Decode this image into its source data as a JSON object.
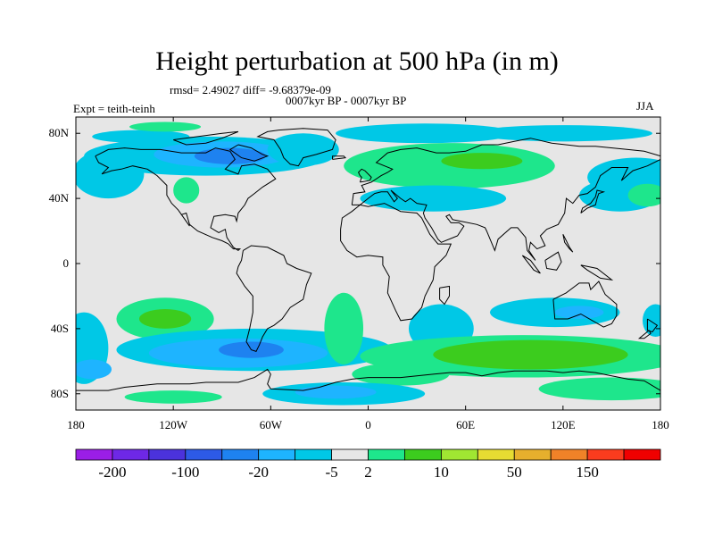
{
  "title": "Height perturbation at 500 hPa (in m)",
  "rmsd_line": "rmsd= 2.49027 diff= -9.68379e-09",
  "period_line": "0007kyr BP - 0007kyr BP",
  "expt_label": "Expt = teith-teinh",
  "season": "JJA",
  "colors": {
    "background": "#e6e6e6",
    "land_outline": "#000000",
    "cyan": "#00c8e6",
    "light_blue": "#1eb4ff",
    "blue": "#1e82f0",
    "aqua_green": "#1ee68c",
    "green": "#3ccc1e"
  },
  "chart_data": {
    "type": "heatmap",
    "title": "Height perturbation at 500 hPa (in m)",
    "xlabel": "",
    "ylabel": "",
    "xlim": [
      -180,
      180
    ],
    "ylim": [
      -90,
      90
    ],
    "x_ticks": [
      {
        "value": -180,
        "label": "180"
      },
      {
        "value": -120,
        "label": "120W"
      },
      {
        "value": -60,
        "label": "60W"
      },
      {
        "value": 0,
        "label": "0"
      },
      {
        "value": 60,
        "label": "60E"
      },
      {
        "value": 120,
        "label": "120E"
      },
      {
        "value": 180,
        "label": "180"
      }
    ],
    "y_ticks": [
      {
        "value": 80,
        "label": "80N"
      },
      {
        "value": 40,
        "label": "40N"
      },
      {
        "value": 0,
        "label": "0"
      },
      {
        "value": -40,
        "label": "40S"
      },
      {
        "value": -80,
        "label": "80S"
      }
    ],
    "colorbar": {
      "colors": [
        "#9b1ee6",
        "#6e28e6",
        "#4b32dc",
        "#2d5ae6",
        "#1e82f0",
        "#1eb4ff",
        "#00c8e6",
        "#e6e6e6",
        "#1ee68c",
        "#3ccc1e",
        "#a0e632",
        "#e6dc32",
        "#e6af2d",
        "#f08228",
        "#fa3c1e",
        "#f00000"
      ],
      "labels": [
        {
          "value": "-200",
          "after_box": 1
        },
        {
          "value": "-100",
          "after_box": 3
        },
        {
          "value": "-20",
          "after_box": 5
        },
        {
          "value": "-5",
          "after_box": 7
        },
        {
          "value": "2",
          "after_box": 8
        },
        {
          "value": "10",
          "after_box": 10
        },
        {
          "value": "50",
          "after_box": 12
        },
        {
          "value": "150",
          "after_box": 14
        }
      ]
    },
    "anomaly_regions": [
      {
        "color": "#00c8e6",
        "lon": -140,
        "lat": 78,
        "rlon": 30,
        "rlat": 4
      },
      {
        "color": "#1ee68c",
        "lon": -125,
        "lat": 84,
        "rlon": 22,
        "rlat": 3
      },
      {
        "color": "#00c8e6",
        "lon": -100,
        "lat": 66,
        "rlon": 75,
        "rlat": 12
      },
      {
        "color": "#1eb4ff",
        "lon": -90,
        "lat": 67,
        "rlon": 42,
        "rlat": 8
      },
      {
        "color": "#1e82f0",
        "lon": -85,
        "lat": 66,
        "rlon": 22,
        "rlat": 5
      },
      {
        "color": "#00c8e6",
        "lon": -40,
        "lat": 70,
        "rlon": 22,
        "rlat": 10
      },
      {
        "color": "#00c8e6",
        "lon": -160,
        "lat": 55,
        "rlon": 22,
        "rlat": 15
      },
      {
        "color": "#1ee68c",
        "lon": -112,
        "lat": 45,
        "rlon": 8,
        "rlat": 8
      },
      {
        "color": "#1ee68c",
        "lon": 50,
        "lat": 60,
        "rlon": 65,
        "rlat": 14
      },
      {
        "color": "#3ccc1e",
        "lon": 70,
        "lat": 63,
        "rlon": 25,
        "rlat": 5
      },
      {
        "color": "#00c8e6",
        "lon": 35,
        "lat": 80,
        "rlon": 55,
        "rlat": 6
      },
      {
        "color": "#00c8e6",
        "lon": 120,
        "lat": 80,
        "rlon": 55,
        "rlat": 5
      },
      {
        "color": "#00c8e6",
        "lon": 40,
        "lat": 40,
        "rlon": 45,
        "rlat": 8
      },
      {
        "color": "#00c8e6",
        "lon": 165,
        "lat": 53,
        "rlon": 30,
        "rlat": 12
      },
      {
        "color": "#00c8e6",
        "lon": 155,
        "lat": 42,
        "rlon": 25,
        "rlat": 10
      },
      {
        "color": "#1ee68c",
        "lon": 172,
        "lat": 42,
        "rlon": 12,
        "rlat": 7
      },
      {
        "color": "#00c8e6",
        "lon": -175,
        "lat": -52,
        "rlon": 15,
        "rlat": 22
      },
      {
        "color": "#1ee68c",
        "lon": -125,
        "lat": -34,
        "rlon": 30,
        "rlat": 13
      },
      {
        "color": "#3ccc1e",
        "lon": -125,
        "lat": -34,
        "rlon": 16,
        "rlat": 6
      },
      {
        "color": "#00c8e6",
        "lon": -70,
        "lat": -53,
        "rlon": 85,
        "rlat": 13
      },
      {
        "color": "#1eb4ff",
        "lon": -80,
        "lat": -55,
        "rlon": 55,
        "rlat": 9
      },
      {
        "color": "#1e82f0",
        "lon": -72,
        "lat": -53,
        "rlon": 20,
        "rlat": 5
      },
      {
        "color": "#1eb4ff",
        "lon": -170,
        "lat": -65,
        "rlon": 12,
        "rlat": 6
      },
      {
        "color": "#1ee68c",
        "lon": -15,
        "lat": -40,
        "rlon": 12,
        "rlat": 22
      },
      {
        "color": "#00c8e6",
        "lon": 45,
        "lat": -40,
        "rlon": 20,
        "rlat": 15
      },
      {
        "color": "#00c8e6",
        "lon": 115,
        "lat": -30,
        "rlon": 40,
        "rlat": 9
      },
      {
        "color": "#1eb4ff",
        "lon": 130,
        "lat": -30,
        "rlon": 15,
        "rlat": 4
      },
      {
        "color": "#00c8e6",
        "lon": 177,
        "lat": -35,
        "rlon": 8,
        "rlat": 10
      },
      {
        "color": "#1ee68c",
        "lon": 95,
        "lat": -57,
        "rlon": 100,
        "rlat": 13
      },
      {
        "color": "#3ccc1e",
        "lon": 100,
        "lat": -56,
        "rlon": 60,
        "rlat": 9
      },
      {
        "color": "#1ee68c",
        "lon": 20,
        "lat": -68,
        "rlon": 30,
        "rlat": 7
      },
      {
        "color": "#1ee68c",
        "lon": 150,
        "lat": -77,
        "rlon": 45,
        "rlat": 7
      },
      {
        "color": "#1ee68c",
        "lon": -120,
        "lat": -82,
        "rlon": 30,
        "rlat": 4
      },
      {
        "color": "#00c8e6",
        "lon": -15,
        "lat": -80,
        "rlon": 50,
        "rlat": 7
      },
      {
        "color": "#1eb4ff",
        "lon": -20,
        "lat": -79,
        "rlon": 25,
        "rlat": 4
      }
    ]
  }
}
